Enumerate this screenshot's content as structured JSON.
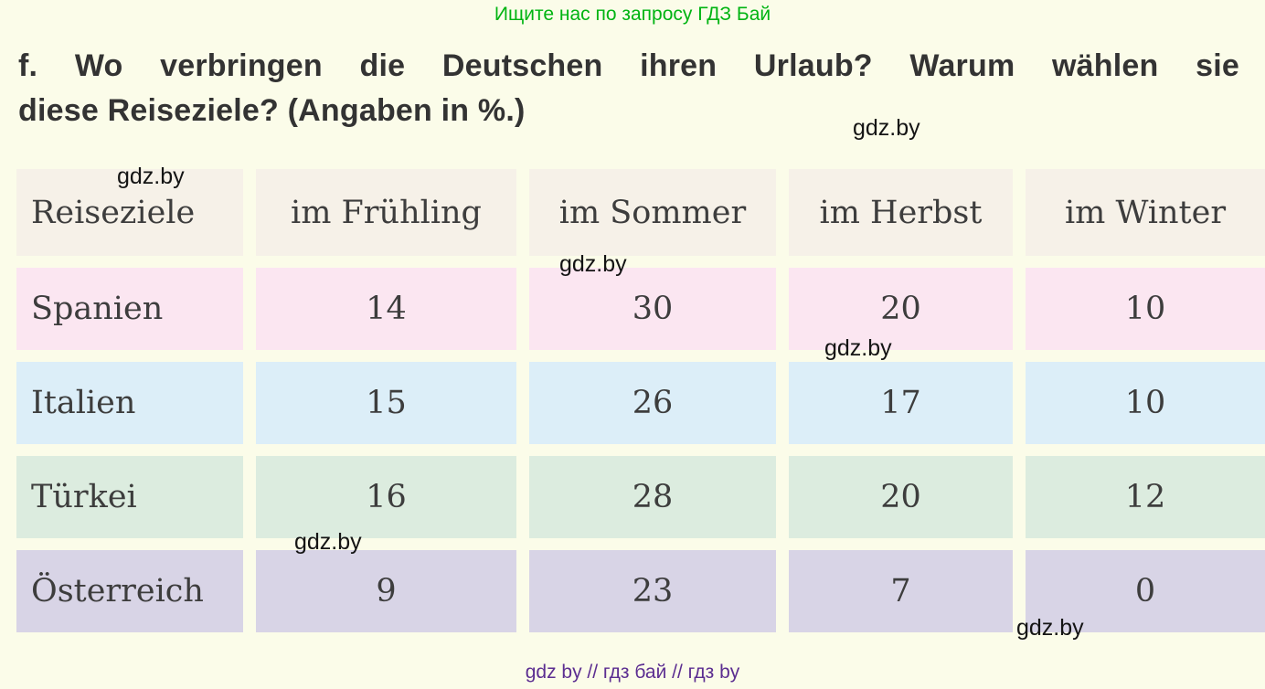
{
  "banner": {
    "text": "Ищите нас по запросу ГДЗ Бай",
    "color": "#00b412"
  },
  "heading": {
    "text": "f. Wo verbringen die Deutschen ihren Urlaub? Warum wählen sie diese Reiseziele? (Angaben in %.)",
    "line1": "f. Wo verbringen die Deutschen ihren Urlaub? Warum wählen sie",
    "line2": "diese Reiseziele? (Angaben in %.)"
  },
  "table": {
    "headers": [
      "Reiseziele",
      "im Frühling",
      "im Sommer",
      "im Herbst",
      "im Winter"
    ],
    "rows": [
      {
        "label": "Spanien",
        "values": [
          "14",
          "30",
          "20",
          "10"
        ],
        "color": "#fbe6f1"
      },
      {
        "label": "Italien",
        "values": [
          "15",
          "26",
          "17",
          "10"
        ],
        "color": "#dceef8"
      },
      {
        "label": "Türkei",
        "values": [
          "16",
          "28",
          "20",
          "12"
        ],
        "color": "#dcecdf"
      },
      {
        "label": "Österreich",
        "values": [
          "9",
          "23",
          "7",
          "0"
        ],
        "color": "#d8d4e6"
      }
    ]
  },
  "chart_data": {
    "type": "table",
    "title": "Wo verbringen die Deutschen ihren Urlaub? (Angaben in %)",
    "categories": [
      "im Frühling",
      "im Sommer",
      "im Herbst",
      "im Winter"
    ],
    "series": [
      {
        "name": "Spanien",
        "values": [
          14,
          30,
          20,
          10
        ]
      },
      {
        "name": "Italien",
        "values": [
          15,
          26,
          17,
          10
        ]
      },
      {
        "name": "Türkei",
        "values": [
          16,
          28,
          20,
          12
        ]
      },
      {
        "name": "Österreich",
        "values": [
          9,
          23,
          7,
          0
        ]
      }
    ]
  },
  "watermarks": [
    {
      "text": "gdz.by"
    },
    {
      "text": "gdz.by"
    },
    {
      "text": "gdz.by"
    },
    {
      "text": "gdz.by"
    },
    {
      "text": "gdz.by"
    },
    {
      "text": "gdz.by"
    }
  ],
  "footer": {
    "text": "gdz by  //  гдз бай  //  гдз by",
    "color": "#5c2e91"
  }
}
